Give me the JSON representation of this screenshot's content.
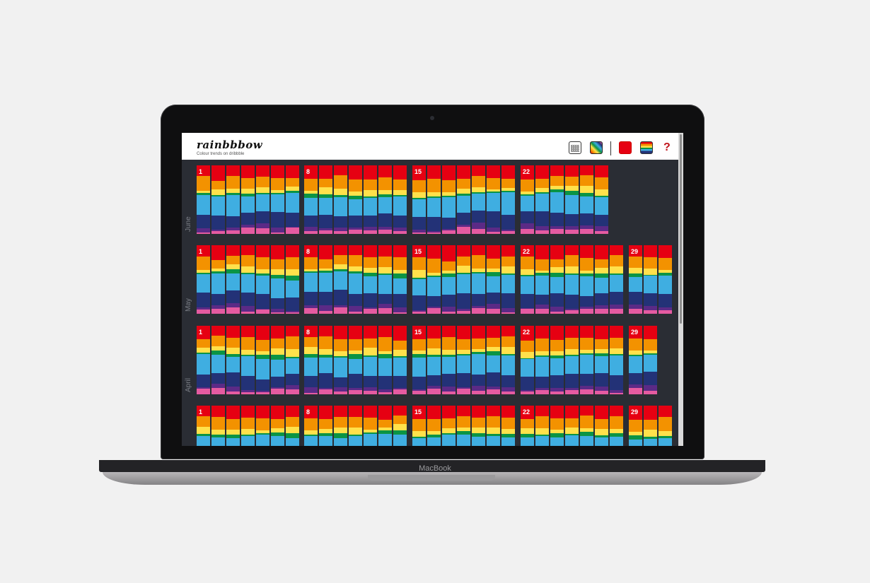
{
  "app": {
    "logo_text": "rainbbbow",
    "subtitle": "Colour trends on dribbble"
  },
  "toolbar": {
    "calendar_icon": "calendar-icon",
    "grid_icon": "color-grid-icon",
    "red_swatch_icon": "red-swatch-icon",
    "bars_icon": "rainbow-bars-icon",
    "help_label": "?"
  },
  "device": {
    "brand_label": "MacBook"
  },
  "colors": {
    "red": "#e60012",
    "orange": "#f39200",
    "yellow": "#ffe14b",
    "green": "#0b9444",
    "blue": "#3faee1",
    "navy": "#233277",
    "purple": "#5b2a86",
    "pink": "#e55ba1",
    "background": "#2a2d34"
  },
  "months": [
    {
      "label": "June",
      "weeks": [
        {
          "label": "1",
          "days": 7
        },
        {
          "label": "8",
          "days": 7
        },
        {
          "label": "15",
          "days": 7
        },
        {
          "label": "22",
          "days": 6
        }
      ]
    },
    {
      "label": "May",
      "weeks": [
        {
          "label": "1",
          "days": 7
        },
        {
          "label": "8",
          "days": 7
        },
        {
          "label": "15",
          "days": 7
        },
        {
          "label": "22",
          "days": 7
        },
        {
          "label": "29",
          "days": 3
        }
      ]
    },
    {
      "label": "April",
      "weeks": [
        {
          "label": "1",
          "days": 7
        },
        {
          "label": "8",
          "days": 7
        },
        {
          "label": "15",
          "days": 7
        },
        {
          "label": "22",
          "days": 7
        },
        {
          "label": "29",
          "days": 2
        }
      ]
    },
    {
      "label": "",
      "weeks": [
        {
          "label": "1",
          "days": 7
        },
        {
          "label": "8",
          "days": 7
        },
        {
          "label": "15",
          "days": 7
        },
        {
          "label": "22",
          "days": 7
        },
        {
          "label": "29",
          "days": 3
        }
      ]
    }
  ]
}
